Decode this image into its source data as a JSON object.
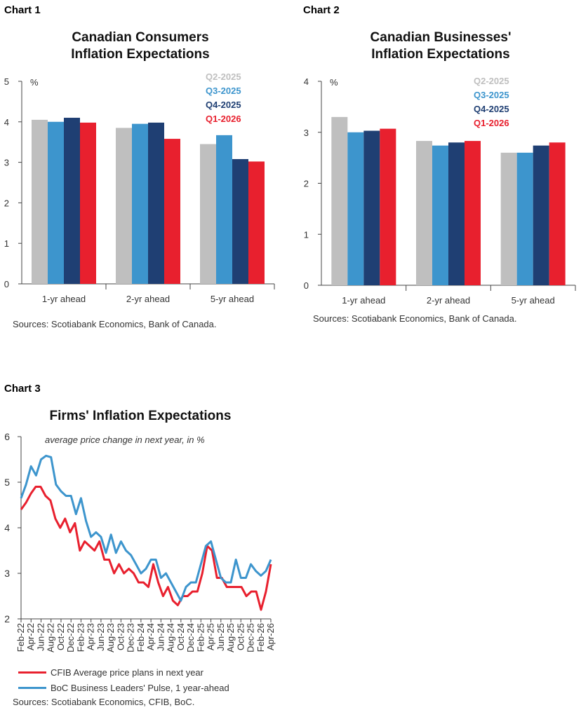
{
  "chart_data": [
    {
      "type": "bar",
      "label": "Chart 1",
      "title_line1": "Canadian Consumers",
      "title_line2": "Inflation Expectations",
      "unit": "%",
      "categories": [
        "1-yr ahead",
        "2-yr ahead",
        "5-yr ahead"
      ],
      "series": [
        {
          "name": "Q2-2025",
          "color": "#bfbfbf",
          "values": [
            4.05,
            3.85,
            3.45
          ]
        },
        {
          "name": "Q3-2025",
          "color": "#3d95cd",
          "values": [
            4.0,
            3.95,
            3.67
          ]
        },
        {
          "name": "Q4-2025",
          "color": "#1f3f73",
          "values": [
            4.1,
            3.98,
            3.08
          ]
        },
        {
          "name": "Q1-2026",
          "color": "#e8202e",
          "values": [
            3.98,
            3.58,
            3.02
          ]
        }
      ],
      "ylim": [
        0,
        5
      ],
      "yticks": [
        "0",
        "1",
        "2",
        "3",
        "4",
        "5"
      ],
      "legend_position": "top-right",
      "source": "Sources: Scotiabank Economics, Bank of Canada."
    },
    {
      "type": "bar",
      "label": "Chart 2",
      "title_line1": "Canadian Businesses'",
      "title_line2": "Inflation Expectations",
      "unit": "%",
      "categories": [
        "1-yr ahead",
        "2-yr ahead",
        "5-yr ahead"
      ],
      "series": [
        {
          "name": "Q2-2025",
          "color": "#bfbfbf",
          "values": [
            3.3,
            2.83,
            2.6
          ]
        },
        {
          "name": "Q3-2025",
          "color": "#3d95cd",
          "values": [
            3.0,
            2.74,
            2.6
          ]
        },
        {
          "name": "Q4-2025",
          "color": "#1f3f73",
          "values": [
            3.03,
            2.8,
            2.74
          ]
        },
        {
          "name": "Q1-2026",
          "color": "#e8202e",
          "values": [
            3.07,
            2.83,
            2.8
          ]
        }
      ],
      "ylim": [
        0,
        4
      ],
      "yticks": [
        "0",
        "1",
        "2",
        "3",
        "4"
      ],
      "legend_position": "top-right",
      "source": "Sources: Scotiabank Economics, Bank of Canada."
    },
    {
      "type": "line",
      "label": "Chart 3",
      "title": "Firms' Inflation Expectations",
      "subtitle": "average price change in next year, in %",
      "ylim": [
        2,
        6
      ],
      "yticks": [
        "2",
        "3",
        "4",
        "5",
        "6"
      ],
      "x_tick_labels": [
        "Feb-22",
        "Apr-22",
        "Jun-22",
        "Aug-22",
        "Oct-22",
        "Dec-22",
        "Feb-23",
        "Apr-23",
        "Jun-23",
        "Aug-23",
        "Oct-23",
        "Dec-23",
        "Feb-24",
        "Apr-24",
        "Jun-24",
        "Aug-24",
        "Oct-24",
        "Dec-24",
        "Feb-25",
        "Apr-25",
        "Jun-25",
        "Aug-25",
        "Oct-25",
        "Dec-25",
        "Feb-26",
        "Apr-26"
      ],
      "x_start": "Feb-22",
      "x_end": "Apr-26",
      "series": [
        {
          "name": "CFIB Average price plans in next year",
          "color": "#e8202e",
          "values": [
            4.4,
            4.55,
            4.75,
            4.9,
            4.9,
            4.7,
            4.6,
            4.2,
            4.0,
            4.2,
            3.9,
            4.1,
            3.5,
            3.7,
            3.6,
            3.5,
            3.7,
            3.3,
            3.3,
            3.0,
            3.2,
            3.0,
            3.1,
            3.0,
            2.8,
            2.8,
            2.7,
            3.2,
            2.8,
            2.5,
            2.7,
            2.4,
            2.3,
            2.5,
            2.5,
            2.6,
            2.6,
            3.0,
            3.6,
            3.5,
            2.9,
            2.9,
            2.7,
            2.7,
            2.7,
            2.7,
            2.5,
            2.6,
            2.6,
            2.2,
            2.6,
            3.2
          ]
        },
        {
          "name": "BoC Business Leaders' Pulse, 1 year-ahead",
          "color": "#3d95cd",
          "values": [
            4.65,
            4.95,
            5.35,
            5.15,
            5.5,
            5.58,
            5.55,
            4.95,
            4.8,
            4.7,
            4.7,
            4.3,
            4.65,
            4.15,
            3.8,
            3.9,
            3.8,
            3.45,
            3.85,
            3.45,
            3.7,
            3.5,
            3.4,
            3.2,
            3.0,
            3.1,
            3.3,
            3.3,
            2.9,
            3.0,
            2.8,
            2.6,
            2.4,
            2.7,
            2.8,
            2.8,
            3.2,
            3.6,
            3.7,
            3.3,
            2.9,
            2.8,
            2.8,
            3.3,
            2.9,
            2.9,
            3.2,
            3.05,
            2.95,
            3.05,
            3.3
          ]
        }
      ],
      "source": "Sources: Scotiabank Economics, CFIB, BoC."
    }
  ]
}
